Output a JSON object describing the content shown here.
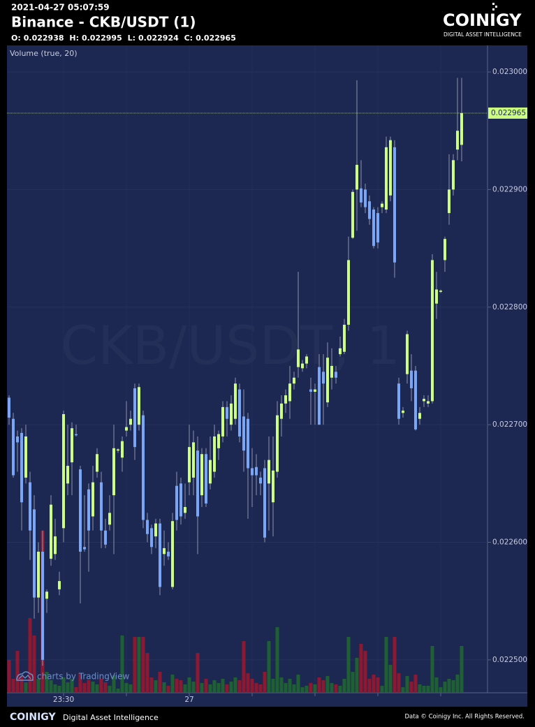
{
  "header": {
    "timestamp": "2021-04-27 05:07:59",
    "title": "Binance - CKB/USDT (1)",
    "ohlc_labels": [
      "O:",
      "H:",
      "L:",
      "C:"
    ],
    "logo": "COINIGY",
    "logo_tagline": "DIGITAL ASSET INTELLIGENCE"
  },
  "chart_data": {
    "type": "candlestick",
    "legend": "Volume (true, 20)",
    "watermark": "CKB/USDT, 1",
    "badge": "charts by TradingView",
    "up_color": "#ccff80",
    "down_color": "#7aa6f5",
    "volume_up_color": "#1f6b2e",
    "volume_down_color": "#a0182b",
    "grid": true,
    "ylim": [
      0.022472,
      0.0230226
    ],
    "yticks": [
      {
        "value": 0.0225,
        "label": "0.022500"
      },
      {
        "value": 0.0226,
        "label": "0.022600"
      },
      {
        "value": 0.0227,
        "label": "0.022700"
      },
      {
        "value": 0.0228,
        "label": "0.022800"
      },
      {
        "value": 0.0229,
        "label": "0.022900"
      },
      {
        "value": 0.023,
        "label": "0.023000"
      }
    ],
    "vlim": [
      0,
      240
    ],
    "categories": [
      null,
      null,
      null,
      null,
      null,
      null,
      null,
      null,
      null,
      null,
      null,
      null,
      null,
      "23:30",
      null,
      null,
      null,
      null,
      null,
      null,
      null,
      null,
      null,
      null,
      null,
      null,
      null,
      null,
      null,
      null,
      null,
      null,
      null,
      null,
      null,
      null,
      null,
      null,
      null,
      null,
      null,
      null,
      null,
      "27",
      null,
      null,
      null,
      null,
      null,
      null,
      null,
      null,
      null,
      null,
      null,
      null,
      null,
      null,
      null,
      null,
      null,
      null,
      null,
      null,
      null,
      null,
      null,
      null,
      null,
      null,
      null,
      null,
      null,
      null,
      null,
      null,
      null,
      null,
      null,
      null,
      null,
      null,
      null,
      null,
      null,
      null,
      null,
      null,
      null,
      null,
      null,
      null,
      null,
      null,
      null,
      null,
      null,
      null,
      null,
      null,
      null,
      null,
      null,
      null,
      null,
      null,
      null,
      null,
      null
    ],
    "open": [
      0.022723,
      0.022705,
      0.02269,
      0.022693,
      0.022655,
      0.022651,
      0.022628,
      0.022553,
      0.022592,
      0.022552,
      0.022586,
      0.02259,
      0.02256,
      0.022612,
      0.02265,
      0.022668,
      0.022692,
      0.022662,
      0.022596,
      0.022645,
      0.022622,
      0.02266,
      0.022651,
      0.02261,
      0.022615,
      0.02264,
      0.022678,
      0.022672,
      0.022695,
      0.0227,
      0.022731,
      0.0227,
      0.022708,
      0.022619,
      0.022612,
      0.022605,
      0.022616,
      0.02259,
      0.022592,
      0.022562,
      0.022648,
      0.02265,
      0.022625,
      0.022651,
      0.022655,
      0.022678,
      0.02264,
      0.022675,
      0.02265,
      0.02266,
      0.02268,
      0.02269,
      0.022715,
      0.0227,
      0.022705,
      0.02273,
      0.022707,
      0.022705,
      0.022663,
      0.022664,
      0.022655,
      0.022663,
      0.02265,
      0.022634,
      0.02266,
      0.022705,
      0.022718,
      0.02272,
      0.022735,
      0.022749,
      0.022748,
      0.022752,
      0.02273,
      0.022728,
      0.022749,
      0.022745,
      0.022719,
      0.02274,
      0.022745,
      0.02276,
      0.022762,
      0.022785,
      0.022859,
      0.0229,
      0.022901,
      0.0229,
      0.02289,
      0.022883,
      0.02288,
      0.022885,
      0.022883,
      0.022895,
      0.022936,
      0.022735,
      0.02271,
      0.022743,
      0.022746,
      0.022746,
      0.022705,
      0.02272,
      0.022718,
      0.02272,
      0.022803,
      0.022813,
      0.02284,
      0.02288,
      0.0229,
      0.022934,
      0.022938
    ],
    "high": [
      0.022725,
      0.02271,
      0.022695,
      0.022697,
      0.0227,
      0.02266,
      0.02264,
      0.0226,
      0.02261,
      0.02256,
      0.02264,
      0.02262,
      0.022575,
      0.022712,
      0.0227,
      0.022702,
      0.0227,
      0.022665,
      0.02264,
      0.02265,
      0.022665,
      0.02268,
      0.02266,
      0.02262,
      0.02264,
      0.0227,
      0.02268,
      0.02269,
      0.02272,
      0.022712,
      0.022735,
      0.022735,
      0.022712,
      0.022625,
      0.022615,
      0.02262,
      0.02262,
      0.02261,
      0.0226,
      0.022625,
      0.02266,
      0.022655,
      0.02265,
      0.0227,
      0.022695,
      0.02269,
      0.02268,
      0.02268,
      0.02269,
      0.0227,
      0.022695,
      0.02272,
      0.02272,
      0.022725,
      0.02274,
      0.022735,
      0.02273,
      0.02271,
      0.02268,
      0.022675,
      0.02266,
      0.02267,
      0.02269,
      0.02269,
      0.02272,
      0.022725,
      0.02273,
      0.02275,
      0.022745,
      0.02283,
      0.022755,
      0.02276,
      0.02274,
      0.022735,
      0.02276,
      0.02276,
      0.02277,
      0.022765,
      0.02275,
      0.022775,
      0.02279,
      0.02286,
      0.0229,
      0.022993,
      0.022925,
      0.022905,
      0.022895,
      0.022885,
      0.022885,
      0.02289,
      0.022945,
      0.022945,
      0.022942,
      0.02274,
      0.022715,
      0.02278,
      0.02276,
      0.02275,
      0.022715,
      0.022725,
      0.022725,
      0.022845,
      0.02283,
      0.022815,
      0.02286,
      0.02293,
      0.02293,
      0.022995,
      0.022995
    ],
    "low": [
      0.0227,
      0.022655,
      0.02266,
      0.02261,
      0.02265,
      0.022585,
      0.022535,
      0.02254,
      0.022495,
      0.02254,
      0.02258,
      0.022585,
      0.022555,
      0.0226,
      0.02264,
      0.02264,
      0.02269,
      0.022548,
      0.022592,
      0.022575,
      0.02261,
      0.022655,
      0.022595,
      0.022595,
      0.02261,
      0.02259,
      0.022676,
      0.02266,
      0.02269,
      0.022695,
      0.02267,
      0.022695,
      0.022612,
      0.0226,
      0.02259,
      0.022595,
      0.022555,
      0.02258,
      0.022585,
      0.02256,
      0.02261,
      0.022615,
      0.02262,
      0.02264,
      0.02264,
      0.02259,
      0.02263,
      0.02263,
      0.022645,
      0.022655,
      0.02267,
      0.022685,
      0.02269,
      0.022695,
      0.0227,
      0.022685,
      0.02266,
      0.02262,
      0.02263,
      0.02264,
      0.02264,
      0.0226,
      0.02261,
      0.022605,
      0.022655,
      0.02269,
      0.02271,
      0.022705,
      0.02273,
      0.02274,
      0.022745,
      0.022748,
      0.0227,
      0.0227,
      0.0227,
      0.0227,
      0.022715,
      0.02273,
      0.022735,
      0.022758,
      0.02276,
      0.02278,
      0.022858,
      0.022865,
      0.022885,
      0.02288,
      0.02287,
      0.02285,
      0.02285,
      0.02288,
      0.02288,
      0.02289,
      0.022825,
      0.0227,
      0.022706,
      0.022735,
      0.02272,
      0.022695,
      0.0227,
      0.022715,
      0.022715,
      0.022718,
      0.02279,
      0.022812,
      0.02283,
      0.02287,
      0.022895,
      0.022925,
      0.022924
    ],
    "close": [
      0.022706,
      0.022657,
      0.022685,
      0.022634,
      0.02269,
      0.02261,
      0.022553,
      0.022592,
      0.0225,
      0.022558,
      0.022632,
      0.022605,
      0.022567,
      0.022709,
      0.022665,
      0.022697,
      0.022691,
      0.022592,
      0.022594,
      0.02261,
      0.022651,
      0.022675,
      0.02261,
      0.022598,
      0.022625,
      0.02268,
      0.022679,
      0.022686,
      0.022698,
      0.022705,
      0.022681,
      0.022732,
      0.022619,
      0.022607,
      0.022596,
      0.022616,
      0.022562,
      0.022595,
      0.022588,
      0.022618,
      0.022619,
      0.022622,
      0.02263,
      0.022681,
      0.022685,
      0.022622,
      0.022675,
      0.022633,
      0.02267,
      0.02269,
      0.022692,
      0.022715,
      0.022705,
      0.022718,
      0.022735,
      0.02269,
      0.022678,
      0.022663,
      0.022657,
      0.022657,
      0.02265,
      0.022604,
      0.02267,
      0.022661,
      0.022708,
      0.022718,
      0.022725,
      0.022735,
      0.02274,
      0.022764,
      0.022752,
      0.022758,
      0.022728,
      0.02273,
      0.0227,
      0.022735,
      0.022757,
      0.02275,
      0.02274,
      0.022765,
      0.022785,
      0.02284,
      0.022898,
      0.022921,
      0.022889,
      0.022885,
      0.022875,
      0.022852,
      0.022855,
      0.022888,
      0.022936,
      0.022942,
      0.022838,
      0.022705,
      0.022712,
      0.022777,
      0.022731,
      0.022696,
      0.02271,
      0.022722,
      0.02272,
      0.02284,
      0.022815,
      0.022814,
      0.022858,
      0.0229,
      0.022925,
      0.02295,
      0.022965
    ],
    "volume": [
      47,
      20,
      60,
      25,
      15,
      107,
      82,
      20,
      232,
      30,
      18,
      12,
      10,
      22,
      15,
      20,
      8,
      28,
      14,
      18,
      16,
      12,
      20,
      15,
      10,
      25,
      6,
      82,
      14,
      12,
      80,
      80,
      80,
      57,
      22,
      18,
      30,
      15,
      10,
      26,
      20,
      18,
      12,
      22,
      16,
      57,
      14,
      20,
      12,
      18,
      14,
      20,
      12,
      16,
      22,
      18,
      74,
      28,
      20,
      14,
      12,
      30,
      74,
      20,
      94,
      22,
      14,
      20,
      12,
      26,
      8,
      10,
      14,
      12,
      22,
      18,
      24,
      14,
      12,
      10,
      20,
      80,
      30,
      50,
      70,
      60,
      20,
      26,
      22,
      10,
      80,
      40,
      80,
      28,
      8,
      24,
      16,
      26,
      12,
      10,
      10,
      67,
      22,
      8,
      16,
      20,
      18,
      26,
      67
    ]
  },
  "footer": {
    "logo": "COINIGY",
    "tagline": "Digital Asset Intelligence",
    "copyright": "Data © Coinigy Inc.  All Rights Reserved."
  }
}
